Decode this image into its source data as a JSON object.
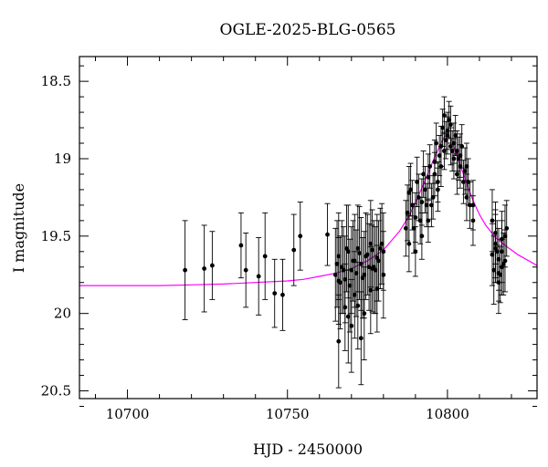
{
  "chart_data": {
    "type": "scatter",
    "title": "OGLE-2025-BLG-0565",
    "xlabel": "HJD - 2450000",
    "ylabel": "I magnitude",
    "xlim": [
      10685,
      10828
    ],
    "ylim": [
      20.55,
      18.34
    ],
    "y_axis_inverted": true,
    "x_ticks": [
      10700,
      10750,
      10800
    ],
    "y_ticks": [
      18.5,
      19,
      19.5,
      20,
      20.5
    ],
    "grid": false,
    "colors": {
      "data": "#000000",
      "model": "#ff00ff"
    },
    "series": [
      {
        "type": "errorbar-points",
        "x": [
          10718.0,
          10724.0,
          10726.5,
          10735.5,
          10737.0,
          10741.0,
          10743.0,
          10746.0,
          10748.5,
          10752.0,
          10754.0,
          10762.5,
          10765.0,
          10766.0,
          10767.0,
          10768.0,
          10769.0,
          10770.0,
          10771.0,
          10772.0,
          10773.0,
          10774.0,
          10775.0,
          10776.0,
          10777.0,
          10778.0,
          10779.0,
          10780.0,
          10765.5,
          10766.5,
          10767.5,
          10768.5,
          10769.5,
          10770.5,
          10771.5,
          10772.5,
          10773.5,
          10774.5,
          10775.5,
          10776.5,
          10777.5,
          10778.5,
          10779.5,
          10766.0,
          10768.0,
          10770.0,
          10772.0,
          10774.0,
          10776.0,
          10778.0,
          10780.0,
          10769.0,
          10771.0,
          10773.0,
          10776.5,
          10766.0,
          10787.0,
          10788.0,
          10789.0,
          10790.0,
          10791.0,
          10792.0,
          10793.0,
          10794.0,
          10795.0,
          10796.0,
          10797.0,
          10798.0,
          10799.0,
          10800.0,
          10801.0,
          10802.0,
          10803.0,
          10804.0,
          10805.0,
          10806.0,
          10807.0,
          10808.0,
          10787.5,
          10788.5,
          10789.5,
          10790.5,
          10791.5,
          10792.5,
          10793.5,
          10794.5,
          10795.5,
          10796.5,
          10797.5,
          10798.5,
          10799.5,
          10800.5,
          10801.5,
          10802.5,
          10803.5,
          10804.5,
          10805.5,
          10806.5,
          10788.0,
          10790.0,
          10792.0,
          10794.0,
          10796.0,
          10798.0,
          10800.0,
          10802.0,
          10804.0,
          10806.0,
          10808.0,
          10799.0,
          10801.0,
          10803.0,
          10797.0,
          10814.0,
          10815.0,
          10816.0,
          10817.0,
          10818.0,
          10814.5,
          10815.5,
          10816.5,
          10817.5,
          10818.5,
          10814.0,
          10815.0,
          10816.0,
          10817.0,
          10818.0,
          10815.0,
          10816.0,
          10817.0
        ],
        "y": [
          19.72,
          19.71,
          19.69,
          19.56,
          19.72,
          19.76,
          19.63,
          19.87,
          19.88,
          19.59,
          19.5,
          19.49,
          19.75,
          19.63,
          19.7,
          19.78,
          19.6,
          19.72,
          19.66,
          19.58,
          19.68,
          19.75,
          19.62,
          19.55,
          19.7,
          19.64,
          19.58,
          19.6,
          19.68,
          19.8,
          19.72,
          19.58,
          19.82,
          19.66,
          19.74,
          19.61,
          19.77,
          19.63,
          19.7,
          19.59,
          19.72,
          19.66,
          19.55,
          20.18,
          19.96,
          20.08,
          19.95,
          20.0,
          19.85,
          19.84,
          19.75,
          20.02,
          19.88,
          20.16,
          19.71,
          19.79,
          19.45,
          19.55,
          19.3,
          19.6,
          19.25,
          19.5,
          19.2,
          19.4,
          19.3,
          19.1,
          19.15,
          19.05,
          18.95,
          18.85,
          18.92,
          19.0,
          19.1,
          19.05,
          19.15,
          19.25,
          19.3,
          19.4,
          19.35,
          19.2,
          19.45,
          19.15,
          19.4,
          19.1,
          19.3,
          19.05,
          19.25,
          18.9,
          18.98,
          18.8,
          18.88,
          18.75,
          18.95,
          18.85,
          19.0,
          18.92,
          19.08,
          19.15,
          19.22,
          19.38,
          19.28,
          19.12,
          19.02,
          18.92,
          18.82,
          18.9,
          18.98,
          19.05,
          19.3,
          18.72,
          18.78,
          18.95,
          19.2,
          19.4,
          19.55,
          19.65,
          19.7,
          19.5,
          19.72,
          19.6,
          19.75,
          19.68,
          19.45,
          19.62,
          19.58,
          19.8,
          19.52,
          19.66,
          19.48,
          19.74,
          19.6
        ],
        "err": [
          0.32,
          0.28,
          0.22,
          0.21,
          0.24,
          0.25,
          0.28,
          0.22,
          0.23,
          0.23,
          0.22,
          0.2,
          0.3,
          0.28,
          0.3,
          0.28,
          0.3,
          0.28,
          0.3,
          0.28,
          0.3,
          0.28,
          0.26,
          0.28,
          0.3,
          0.28,
          0.26,
          0.25,
          0.28,
          0.3,
          0.28,
          0.28,
          0.3,
          0.26,
          0.28,
          0.3,
          0.26,
          0.28,
          0.28,
          0.26,
          0.28,
          0.26,
          0.26,
          0.3,
          0.28,
          0.3,
          0.28,
          0.3,
          0.28,
          0.28,
          0.28,
          0.3,
          0.28,
          0.3,
          0.28,
          0.28,
          0.18,
          0.18,
          0.16,
          0.16,
          0.15,
          0.15,
          0.15,
          0.14,
          0.14,
          0.14,
          0.13,
          0.13,
          0.12,
          0.12,
          0.12,
          0.13,
          0.13,
          0.14,
          0.14,
          0.15,
          0.15,
          0.16,
          0.18,
          0.17,
          0.16,
          0.16,
          0.15,
          0.15,
          0.14,
          0.14,
          0.14,
          0.13,
          0.13,
          0.12,
          0.12,
          0.12,
          0.13,
          0.13,
          0.14,
          0.14,
          0.15,
          0.15,
          0.17,
          0.16,
          0.15,
          0.15,
          0.14,
          0.13,
          0.12,
          0.13,
          0.14,
          0.15,
          0.16,
          0.12,
          0.12,
          0.13,
          0.14,
          0.2,
          0.22,
          0.2,
          0.18,
          0.2,
          0.22,
          0.2,
          0.18,
          0.2,
          0.18,
          0.2,
          0.22,
          0.2,
          0.18,
          0.2,
          0.2,
          0.18,
          0.2
        ]
      },
      {
        "type": "model-line",
        "x": [
          10685,
          10700,
          10710,
          10720,
          10730,
          10740,
          10750,
          10755,
          10760,
          10765,
          10770,
          10775,
          10780,
          10785,
          10788,
          10790,
          10792,
          10794,
          10796,
          10798,
          10799,
          10800,
          10801,
          10802,
          10804,
          10806,
          10808,
          10810,
          10812,
          10815,
          10818,
          10822,
          10828
        ],
        "y": [
          19.82,
          19.82,
          19.82,
          19.815,
          19.81,
          19.8,
          19.79,
          19.78,
          19.76,
          19.74,
          19.71,
          19.66,
          19.59,
          19.47,
          19.37,
          19.28,
          19.19,
          19.09,
          18.99,
          18.9,
          18.86,
          18.84,
          18.87,
          18.92,
          19.04,
          19.16,
          19.27,
          19.36,
          19.43,
          19.51,
          19.56,
          19.62,
          19.69
        ]
      }
    ]
  }
}
